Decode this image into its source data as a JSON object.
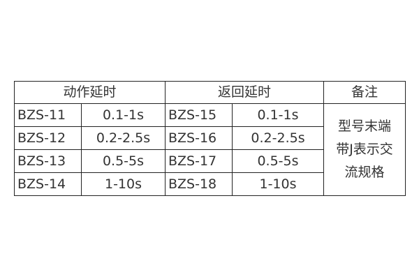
{
  "headers": [
    "动作延时",
    "返回延时",
    "备注"
  ],
  "rows": [
    {
      "op_model": "BZS-11",
      "op_range": "0.1-1s",
      "ret_model": "BZS-15",
      "ret_range": "0.1-1s"
    },
    {
      "op_model": "BZS-12",
      "op_range": "0.2-2.5s",
      "ret_model": "BZS-16",
      "ret_range": "0.2-2.5s"
    },
    {
      "op_model": "BZS-13",
      "op_range": "0.5-5s",
      "ret_model": "BZS-17",
      "ret_range": "0.5-5s"
    },
    {
      "op_model": "BZS-14",
      "op_range": "1-10s",
      "ret_model": "BZS-18",
      "ret_range": "1-10s"
    }
  ],
  "note_lines": [
    "型号末端",
    "带J表示交",
    "流规格"
  ]
}
